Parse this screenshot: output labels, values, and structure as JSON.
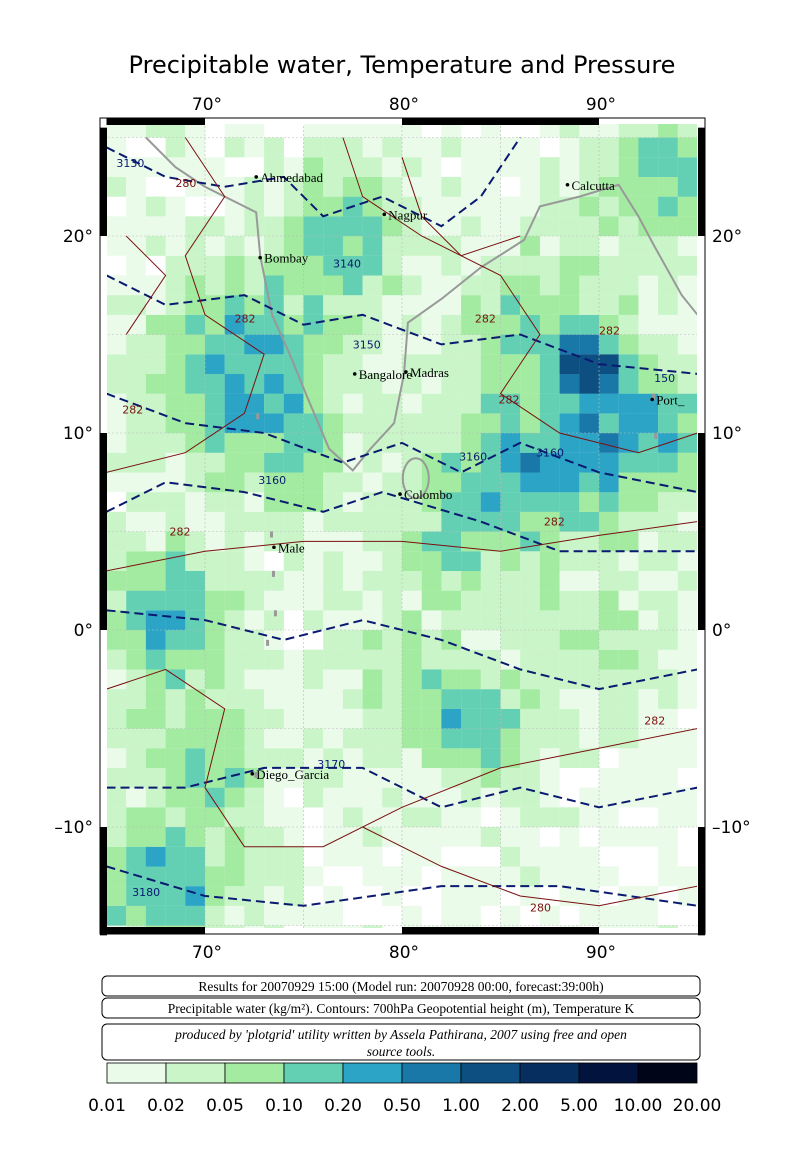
{
  "title": "Precipitable water, Temperature and Pressure",
  "lon_labels": [
    "70°",
    "80°",
    "90°"
  ],
  "lat_labels": [
    "20°",
    "10°",
    "0°",
    "–10°"
  ],
  "cities": [
    "Ahmedabad",
    "Calcutta",
    "Nagpur",
    "Bombay",
    "Bangalore",
    "Madras",
    "Port_",
    "Colombo",
    "Male",
    "Diego_Garcia"
  ],
  "contour_labels": [
    "3130",
    "280",
    "3140",
    "282",
    "3150",
    "282",
    "282",
    "150",
    "282",
    "3160",
    "3160",
    "3160",
    "282",
    "282",
    "282",
    "3170",
    "3180",
    "282",
    "280"
  ],
  "info": [
    "Results for 20070929 15:00 (Model run: 20070928 00:00, forecast:39:00h)",
    "Precipitable water (kg/m²).  Contours: 700hPa Geopotential height (m), Temperature K",
    "produced by 'plotgrid' utility written by Assela Pathirana, 2007 using free and open",
    "source tools."
  ],
  "colorbar": {
    "labels": [
      "0.01",
      "0.02",
      "0.05",
      "0.10",
      "0.20",
      "0.50",
      "1.00",
      "2.00",
      "5.00",
      "10.00",
      "20.00"
    ],
    "colors": [
      "#ebfbea",
      "#c9f5c8",
      "#a2eba1",
      "#63cfb3",
      "#2ba4c6",
      "#1a78a8",
      "#0c4f80",
      "#062f5f",
      "#02133d",
      "#000518"
    ]
  }
}
